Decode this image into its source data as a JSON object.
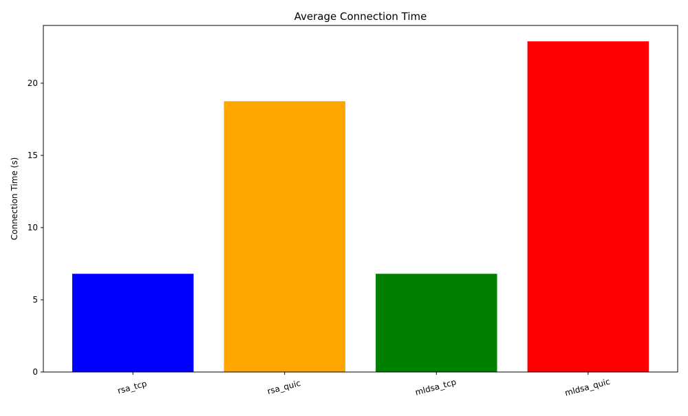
{
  "chart_data": {
    "type": "bar",
    "title": "Average Connection Time",
    "xlabel": "",
    "ylabel": "Connection Time (s)",
    "categories": [
      "rsa_tcp",
      "rsa_quic",
      "mldsa_tcp",
      "mldsa_quic"
    ],
    "values": [
      6.8,
      18.75,
      6.8,
      22.9
    ],
    "colors": [
      "#0000ff",
      "#ffa500",
      "#008000",
      "#ff0000"
    ],
    "ylim": [
      0,
      24
    ],
    "yticks": [
      0,
      5,
      10,
      15,
      20
    ],
    "grid": false,
    "legend": "none"
  }
}
